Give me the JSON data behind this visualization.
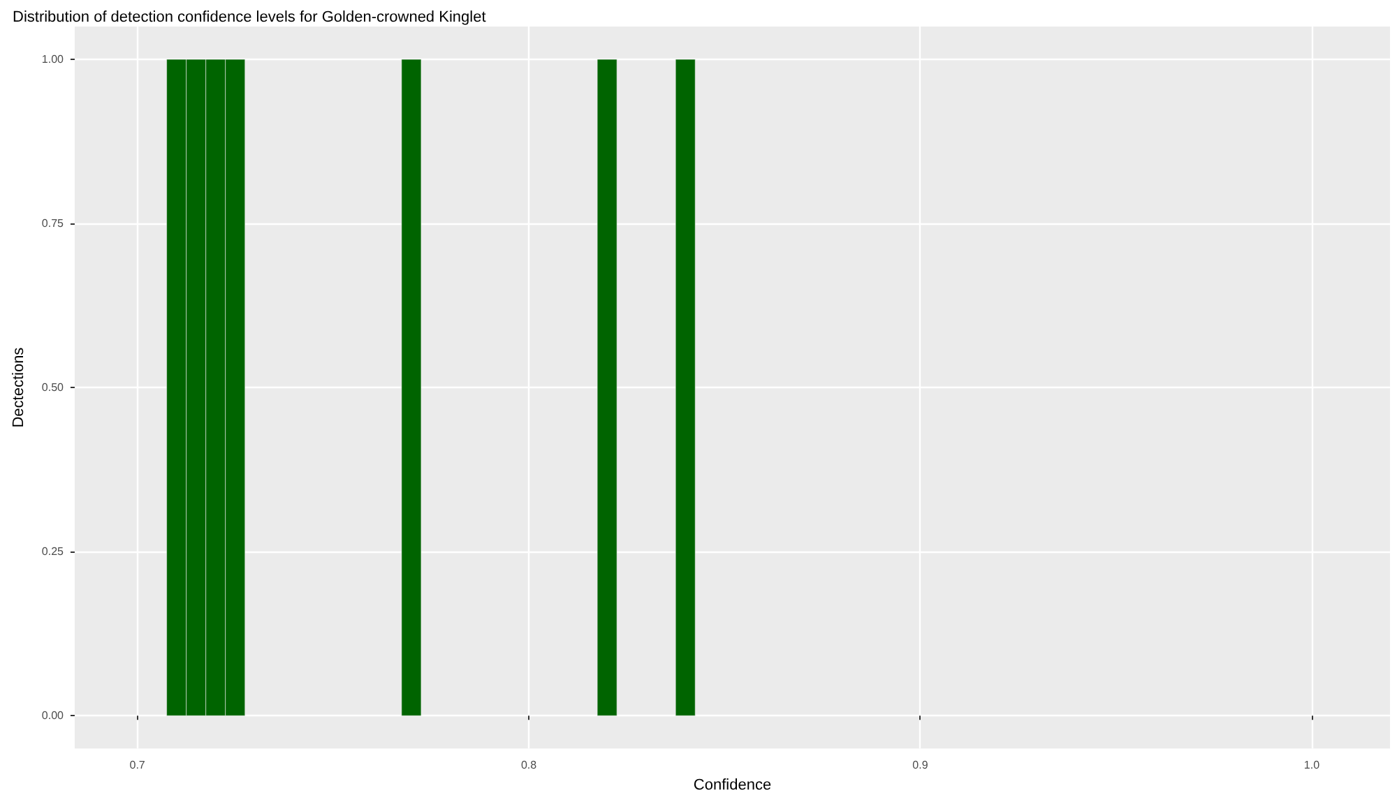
{
  "chart_data": {
    "type": "histogram",
    "title": "Distribution of detection confidence levels for Golden-crowned Kinglet",
    "xlabel": "Confidence",
    "ylabel": "Dectections",
    "color": "#006400",
    "bins": [
      0.7075,
      0.7125,
      0.7175,
      0.7225,
      0.7275,
      0.7325,
      0.7375,
      0.7425,
      0.7475,
      0.7525,
      0.7575,
      0.7625,
      0.7675,
      0.7725,
      0.7775,
      0.7825,
      0.7875,
      0.7925,
      0.7975,
      0.8025,
      0.8075,
      0.8125,
      0.8175,
      0.8225,
      0.8275,
      0.8325,
      0.8375,
      0.8425
    ],
    "values": [
      1,
      1,
      1,
      1,
      0,
      0,
      0,
      0,
      0,
      0,
      0,
      0,
      1,
      0,
      0,
      0,
      0,
      0,
      0,
      0,
      0,
      0,
      1,
      0,
      0,
      0,
      1
    ],
    "xlim": [
      0.684,
      1.02
    ],
    "xticks": [
      {
        "value": 0.7,
        "label": "0.7"
      },
      {
        "value": 0.8,
        "label": "0.8"
      },
      {
        "value": 0.9,
        "label": "0.9"
      },
      {
        "value": 1.0,
        "label": "1.0"
      }
    ],
    "ylim": [
      -0.05,
      1.05
    ],
    "yticks": [
      {
        "value": 0,
        "label": "0.00"
      },
      {
        "value": 0.25,
        "label": "0.25"
      },
      {
        "value": 0.5,
        "label": "0.50"
      },
      {
        "value": 0.75,
        "label": "0.75"
      },
      {
        "value": 1,
        "label": "1.00"
      }
    ],
    "grid": true
  }
}
